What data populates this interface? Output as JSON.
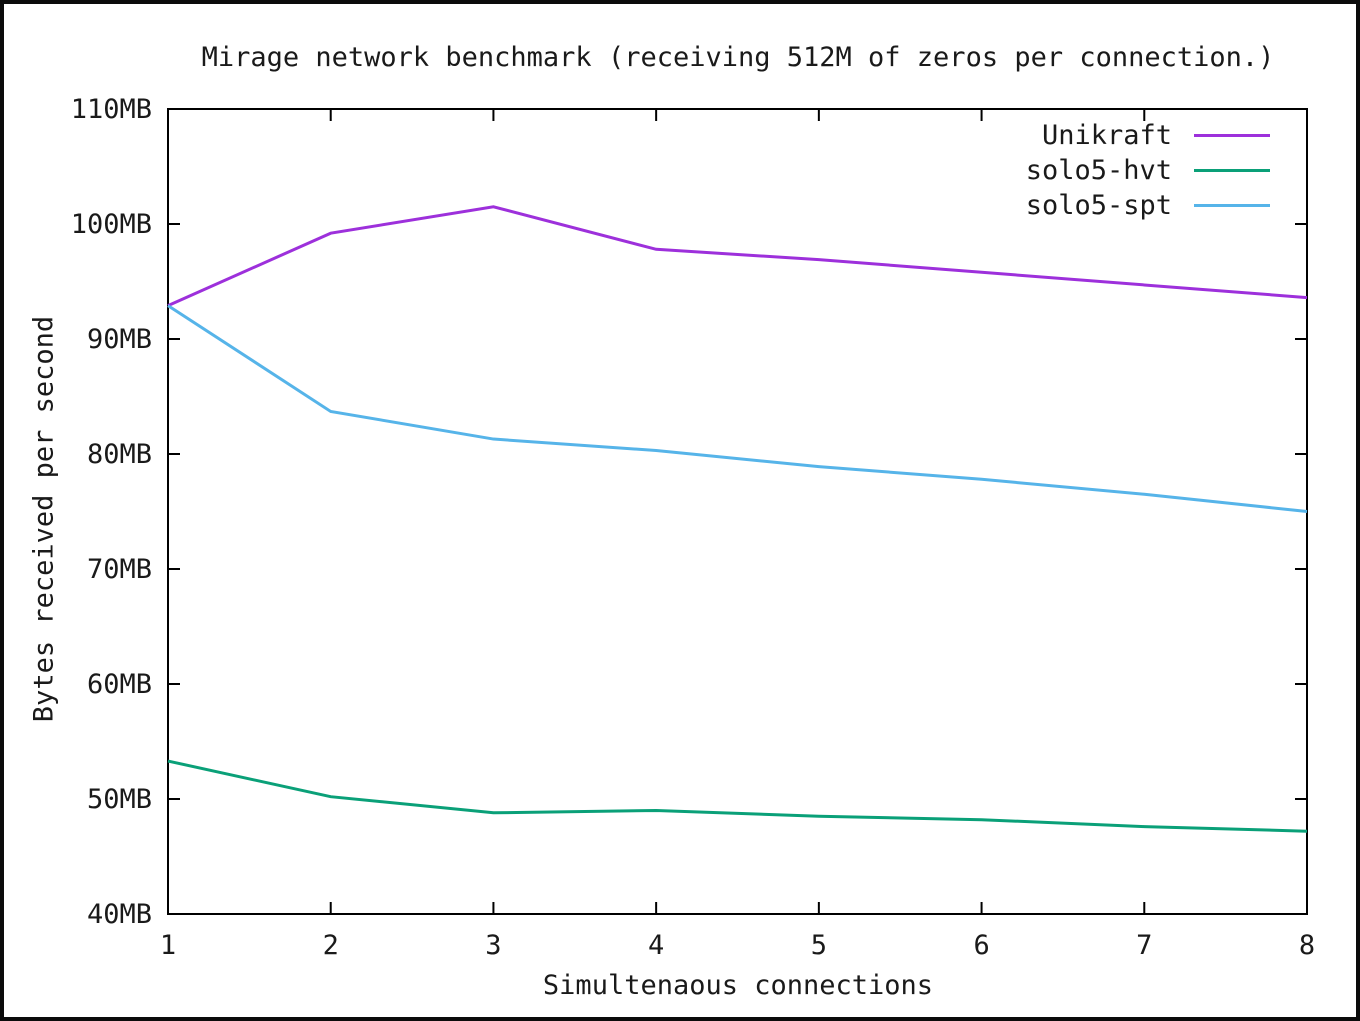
{
  "chart_data": {
    "type": "line",
    "title": "Mirage network benchmark (receiving 512M of zeros per connection.)",
    "xlabel": "Simultenaous connections",
    "ylabel": "Bytes received per second",
    "x": [
      1,
      2,
      3,
      4,
      5,
      6,
      7,
      8
    ],
    "xlim": [
      1,
      8
    ],
    "ylim": [
      40,
      110
    ],
    "xtick_labels": [
      "1",
      "2",
      "3",
      "4",
      "5",
      "6",
      "7",
      "8"
    ],
    "ytick_values": [
      40,
      50,
      60,
      70,
      80,
      90,
      100,
      110
    ],
    "ytick_labels": [
      "40MB",
      "50MB",
      "60MB",
      "70MB",
      "80MB",
      "90MB",
      "100MB",
      "110MB"
    ],
    "grid": false,
    "legend_position": "top-right-inside",
    "axis_color": "#000000",
    "series": [
      {
        "name": "Unikraft",
        "color": "#9d30db",
        "values": [
          92.9,
          99.2,
          101.5,
          97.8,
          96.9,
          95.8,
          94.7,
          93.6
        ]
      },
      {
        "name": "solo5-hvt",
        "color": "#0aa078",
        "values": [
          53.3,
          50.2,
          48.8,
          49.0,
          48.5,
          48.2,
          47.6,
          47.2
        ]
      },
      {
        "name": "solo5-spt",
        "color": "#56b4e9",
        "values": [
          92.9,
          83.7,
          81.3,
          80.3,
          78.9,
          77.8,
          76.5,
          75.0
        ]
      }
    ]
  }
}
